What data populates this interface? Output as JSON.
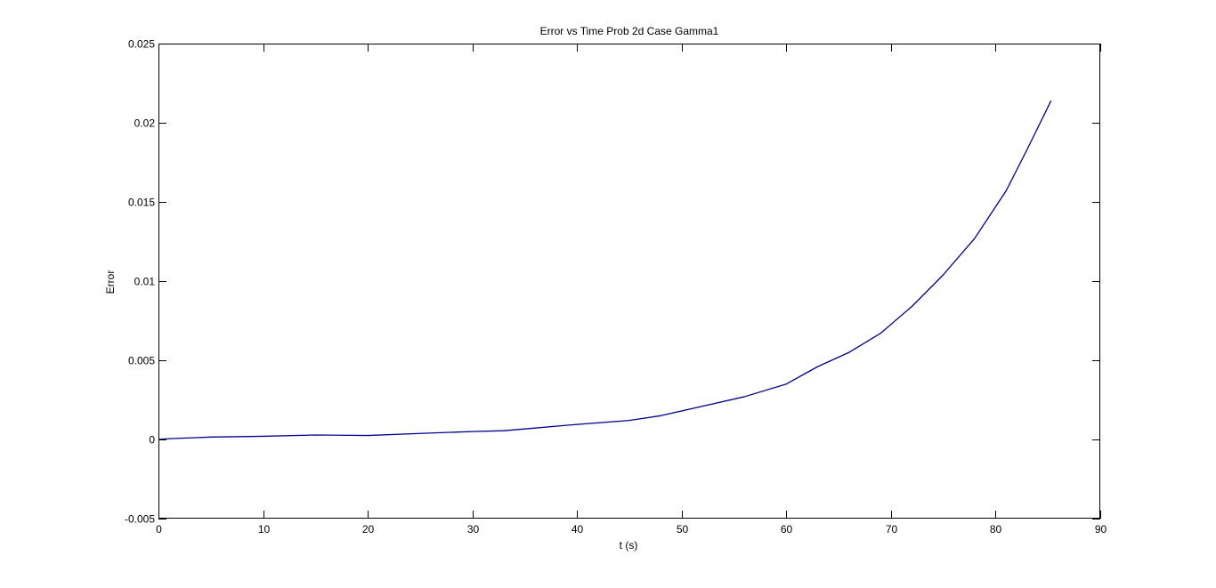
{
  "chart_data": {
    "type": "line",
    "title": "Error vs Time Prob 2d Case Gamma1",
    "xlabel": "t (s)",
    "ylabel": "Error",
    "xlim": [
      0,
      90
    ],
    "ylim": [
      -0.005,
      0.025
    ],
    "xticks": [
      0,
      10,
      20,
      30,
      40,
      50,
      60,
      70,
      80,
      90
    ],
    "xtick_labels": [
      "0",
      "10",
      "20",
      "30",
      "40",
      "50",
      "60",
      "70",
      "80",
      "90"
    ],
    "yticks": [
      -0.005,
      0,
      0.005,
      0.01,
      0.015,
      0.02,
      0.025
    ],
    "ytick_labels": [
      "-0.005",
      "0",
      "0.005",
      "0.01",
      "0.015",
      "0.02",
      "0.025"
    ],
    "grid": false,
    "legend": false,
    "series": [
      {
        "color": "#00008b",
        "x": [
          0,
          1,
          3,
          5,
          10,
          15,
          20,
          25,
          30,
          33,
          36,
          40,
          45,
          48,
          52,
          56,
          60,
          63,
          66,
          69,
          72,
          75,
          78,
          81,
          83,
          85.3
        ],
        "y": [
          0,
          5e-05,
          0.0001,
          0.00015,
          0.0002,
          0.00028,
          0.00025,
          0.00038,
          0.0005,
          0.00055,
          0.00072,
          0.00095,
          0.0012,
          0.0015,
          0.0021,
          0.0027,
          0.0035,
          0.0046,
          0.0055,
          0.0067,
          0.0084,
          0.0104,
          0.0127,
          0.0157,
          0.0183,
          0.0214
        ]
      }
    ]
  }
}
